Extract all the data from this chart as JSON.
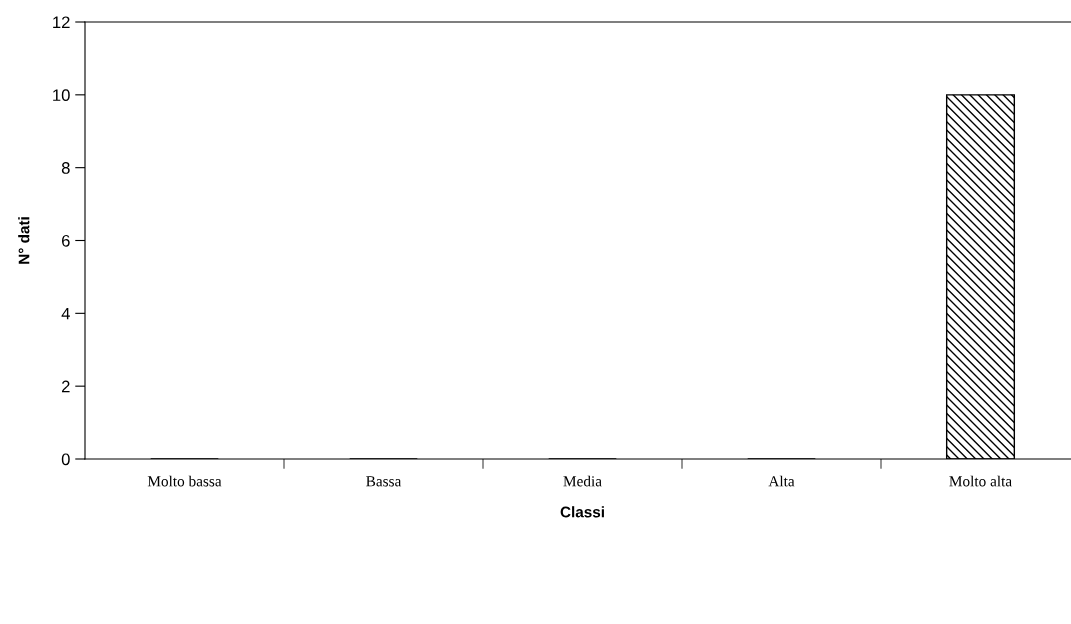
{
  "chart_data": {
    "type": "bar",
    "xlabel": "Classi",
    "ylabel": "N° dati",
    "categories": [
      "Molto bassa",
      "Bassa",
      "Media",
      "Alta",
      "Molto alta"
    ],
    "values": [
      0,
      0,
      0,
      0,
      10
    ],
    "color": "#000000",
    "ylim": [
      0,
      12
    ],
    "yticks": [
      0,
      2,
      4,
      6,
      8,
      10,
      12
    ],
    "grid": false,
    "legend": false
  }
}
